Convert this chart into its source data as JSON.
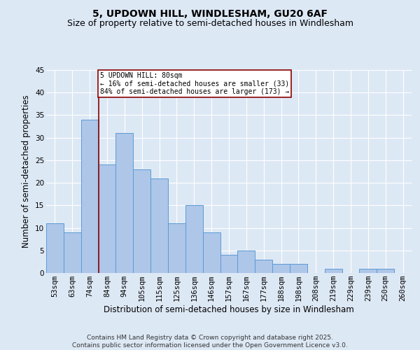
{
  "title": "5, UPDOWN HILL, WINDLESHAM, GU20 6AF",
  "subtitle": "Size of property relative to semi-detached houses in Windlesham",
  "xlabel": "Distribution of semi-detached houses by size in Windlesham",
  "ylabel": "Number of semi-detached properties",
  "bar_color": "#aec6e8",
  "bar_edge_color": "#5b9bd5",
  "categories": [
    "53sqm",
    "63sqm",
    "74sqm",
    "84sqm",
    "94sqm",
    "105sqm",
    "115sqm",
    "125sqm",
    "136sqm",
    "146sqm",
    "157sqm",
    "167sqm",
    "177sqm",
    "188sqm",
    "198sqm",
    "208sqm",
    "219sqm",
    "229sqm",
    "239sqm",
    "250sqm",
    "260sqm"
  ],
  "values": [
    11,
    9,
    34,
    24,
    31,
    23,
    21,
    11,
    15,
    9,
    4,
    5,
    3,
    2,
    2,
    0,
    1,
    0,
    1,
    1,
    0
  ],
  "ylim": [
    0,
    45
  ],
  "yticks": [
    0,
    5,
    10,
    15,
    20,
    25,
    30,
    35,
    40,
    45
  ],
  "annotation_text": "5 UPDOWN HILL: 80sqm\n← 16% of semi-detached houses are smaller (33)\n84% of semi-detached houses are larger (173) →",
  "vline_bar_index": 2,
  "footer": "Contains HM Land Registry data © Crown copyright and database right 2025.\nContains public sector information licensed under the Open Government Licence v3.0.",
  "background_color": "#dde8f5",
  "grid_color": "#ffffff",
  "title_fontsize": 10,
  "subtitle_fontsize": 9,
  "axis_label_fontsize": 8.5,
  "tick_fontsize": 7.5,
  "footer_fontsize": 6.5
}
